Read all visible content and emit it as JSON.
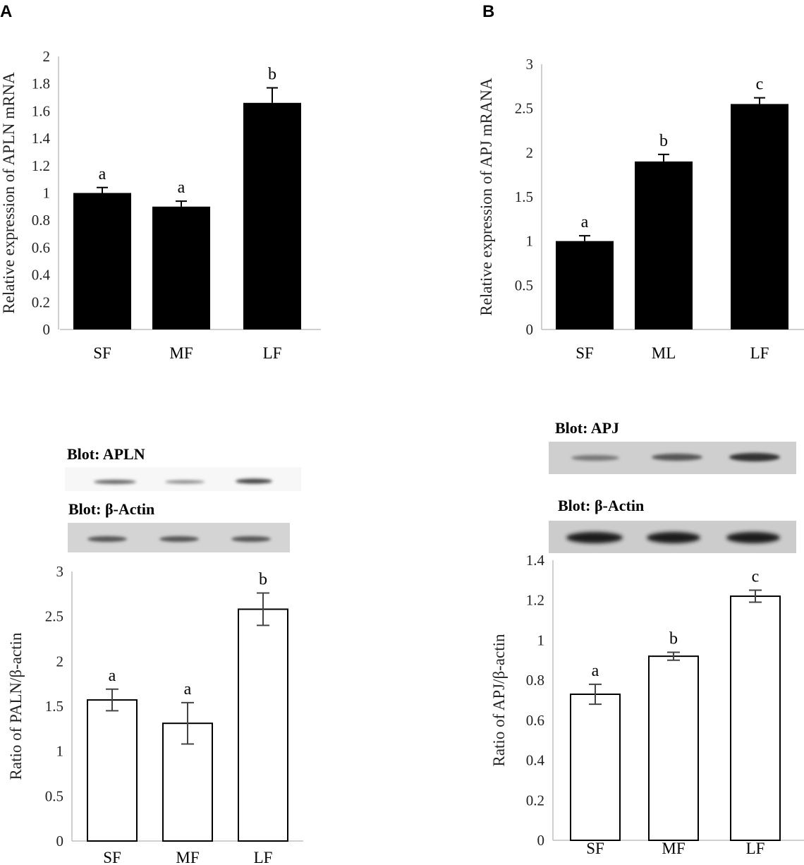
{
  "panel_labels": [
    "A",
    "B"
  ],
  "blots": {
    "A": {
      "top_label": "Blot: APLN",
      "bottom_label": "Blot: β-Actin"
    },
    "B": {
      "top_label": "Blot: APJ",
      "bottom_label": "Blot: β-Actin"
    }
  },
  "chart_data": [
    {
      "panel": "A",
      "type": "bar",
      "style": "filled",
      "color": "#000000",
      "ylabel": "Relative expression of APLN mRNA",
      "xlabel": "",
      "categories": [
        "SF",
        "MF",
        "LF"
      ],
      "values": [
        1.0,
        0.9,
        1.66
      ],
      "errors": [
        0.04,
        0.04,
        0.11
      ],
      "letters": [
        "a",
        "a",
        "b"
      ],
      "ylim": [
        0,
        2
      ],
      "yticks": [
        "0",
        "0.2",
        "0.4",
        "0.6",
        "0.8",
        "1",
        "1.2",
        "1.4",
        "1.6",
        "1.8",
        "2"
      ]
    },
    {
      "panel": "B",
      "type": "bar",
      "style": "filled",
      "color": "#000000",
      "ylabel": "Relative expression of APJ mRANA",
      "xlabel": "",
      "categories": [
        "SF",
        "ML",
        "LF"
      ],
      "values": [
        1.0,
        1.9,
        2.55
      ],
      "errors": [
        0.06,
        0.08,
        0.07
      ],
      "letters": [
        "a",
        "b",
        "c"
      ],
      "ylim": [
        0,
        3
      ],
      "yticks": [
        "0",
        "0.5",
        "1",
        "1.5",
        "2",
        "2.5",
        "3"
      ]
    },
    {
      "panel": "A",
      "type": "bar",
      "style": "open",
      "color": "#000000",
      "ylabel": "Ratio of  PALN/β-actin",
      "xlabel": "",
      "categories": [
        "SF",
        "MF",
        "LF"
      ],
      "values": [
        1.57,
        1.31,
        2.58
      ],
      "errors": [
        0.12,
        0.23,
        0.18
      ],
      "letters": [
        "a",
        "a",
        "b"
      ],
      "ylim": [
        0,
        3
      ],
      "yticks": [
        "0",
        "0.5",
        "1",
        "1.5",
        "2",
        "2.5",
        "3"
      ]
    },
    {
      "panel": "B",
      "type": "bar",
      "style": "open",
      "color": "#000000",
      "ylabel": "Ratio of  APJ/β-actin",
      "xlabel": "",
      "categories": [
        "SF",
        "MF",
        "LF"
      ],
      "values": [
        0.73,
        0.92,
        1.22
      ],
      "errors": [
        0.05,
        0.02,
        0.03
      ],
      "letters": [
        "a",
        "b",
        "c"
      ],
      "ylim": [
        0,
        1.4
      ],
      "yticks": [
        "0",
        "0.2",
        "0.4",
        "0.6",
        "0.8",
        "1",
        "1.2",
        "1.4"
      ]
    }
  ]
}
